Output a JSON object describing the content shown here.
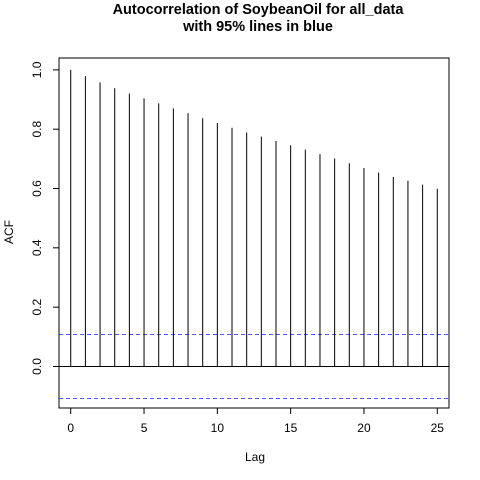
{
  "chart_data": {
    "type": "bar",
    "title": "Autocorrelation of SoybeanOil for all_data",
    "subtitle": "with 95% lines in blue",
    "xlabel": "Lag",
    "ylabel": "ACF",
    "xlim": [
      -0.8,
      25.8
    ],
    "ylim": [
      -0.14,
      1.04
    ],
    "x_ticks": [
      0,
      5,
      10,
      15,
      20,
      25
    ],
    "y_ticks": [
      0.0,
      0.2,
      0.4,
      0.6,
      0.8,
      1.0
    ],
    "x_tick_labels": [
      "0",
      "5",
      "10",
      "15",
      "20",
      "25"
    ],
    "y_tick_labels": [
      "0.0",
      "0.2",
      "0.4",
      "0.6",
      "0.8",
      "1.0"
    ],
    "lags": [
      0,
      1,
      2,
      3,
      4,
      5,
      6,
      7,
      8,
      9,
      10,
      11,
      12,
      13,
      14,
      15,
      16,
      17,
      18,
      19,
      20,
      21,
      22,
      23,
      24,
      25
    ],
    "acf": [
      1.0,
      0.979,
      0.958,
      0.938,
      0.92,
      0.904,
      0.887,
      0.87,
      0.854,
      0.837,
      0.821,
      0.805,
      0.789,
      0.775,
      0.76,
      0.746,
      0.731,
      0.716,
      0.701,
      0.685,
      0.669,
      0.654,
      0.639,
      0.626,
      0.613,
      0.599
    ],
    "confidence_bound": 0.108,
    "confidence_color": "#4f57ff",
    "grid": false
  }
}
